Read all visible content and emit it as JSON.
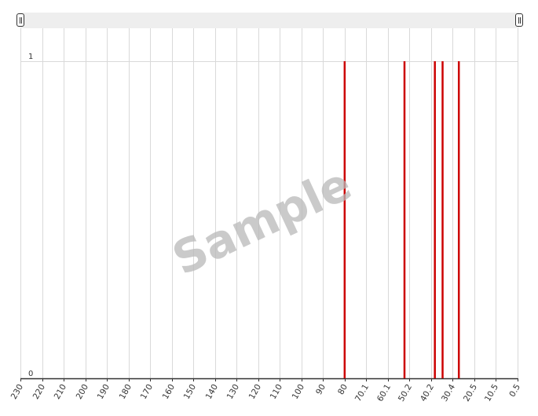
{
  "chart_data": {
    "type": "bar",
    "x_tick_labels": [
      "230",
      "220",
      "210",
      "200",
      "190",
      "180",
      "170",
      "160",
      "150",
      "140",
      "130",
      "120",
      "110",
      "100",
      "90",
      "80",
      "70.1",
      "60.1",
      "50.2",
      "40.2",
      "30.4",
      "20.5",
      "10.5",
      "0.5"
    ],
    "xlim": [
      230,
      0.5
    ],
    "ylim": [
      0,
      1
    ],
    "y_tick_labels": [
      "0",
      "1"
    ],
    "bars": [
      {
        "x": 80,
        "value": 1
      },
      {
        "x": 52.5,
        "value": 1
      },
      {
        "x": 38.5,
        "value": 1
      },
      {
        "x": 35,
        "value": 1
      },
      {
        "x": 27.6,
        "value": 1
      }
    ],
    "bar_color": "#cc0000",
    "grid": true
  },
  "watermark": "Sample"
}
